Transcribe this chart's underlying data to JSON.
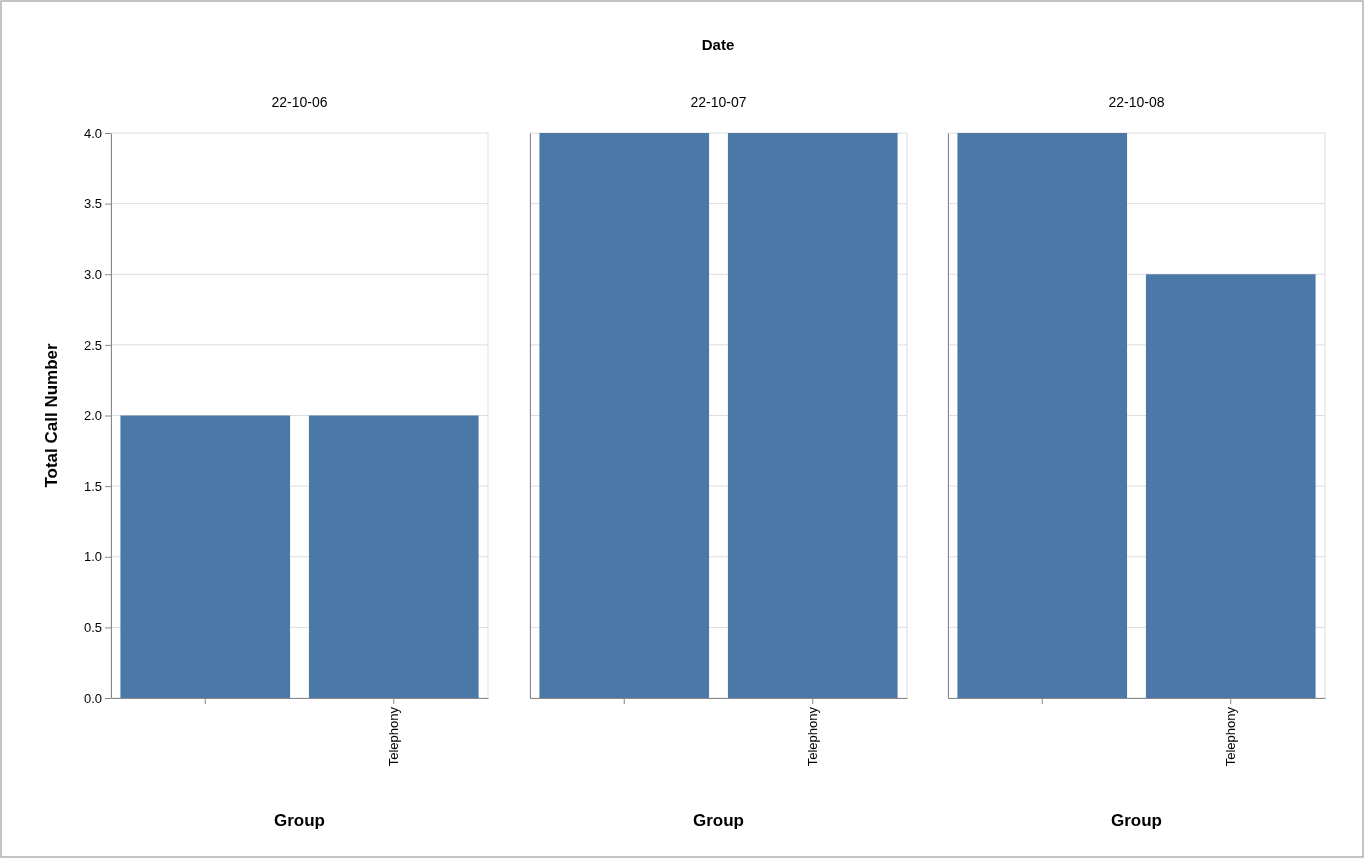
{
  "chart_data": [
    {
      "type": "bar",
      "title": "22-10-06",
      "annotations": [
        "Date"
      ],
      "xlabel": "Group",
      "ylabel": "Total Call Number",
      "categories": [
        null,
        "Telephony"
      ],
      "values": [
        2,
        2
      ],
      "color": "#4c78a8",
      "ylim": [
        0,
        4
      ],
      "yticks": [
        {
          "value": 0,
          "label": "0.0"
        },
        {
          "value": 0.5,
          "label": "0.5"
        },
        {
          "value": 1,
          "label": "1.0"
        },
        {
          "value": 1.5,
          "label": "1.5"
        },
        {
          "value": 2,
          "label": "2.0"
        },
        {
          "value": 2.5,
          "label": "2.5"
        },
        {
          "value": 3,
          "label": "3.0"
        },
        {
          "value": 3.5,
          "label": "3.5"
        },
        {
          "value": 4,
          "label": "4.0"
        }
      ],
      "grid": "y"
    },
    {
      "type": "bar",
      "title": "22-10-07",
      "xlabel": "Group",
      "categories": [
        null,
        "Telephony"
      ],
      "values": [
        4,
        4
      ],
      "color": "#4c78a8",
      "ylim": [
        0,
        4
      ],
      "yticks": [
        0,
        0.5,
        1,
        1.5,
        2,
        2.5,
        3,
        3.5,
        4
      ],
      "grid": "y",
      "tick_labels": "x"
    },
    {
      "type": "bar",
      "title": "22-10-08",
      "xlabel": "Group",
      "categories": [
        null,
        "Telephony"
      ],
      "values": [
        4,
        3
      ],
      "color": "#4c78a8",
      "ylim": [
        0,
        4
      ],
      "yticks": [
        0,
        0.5,
        1,
        1.5,
        2,
        2.5,
        3,
        3.5,
        4
      ],
      "grid": "y",
      "tick_labels": "x"
    }
  ]
}
